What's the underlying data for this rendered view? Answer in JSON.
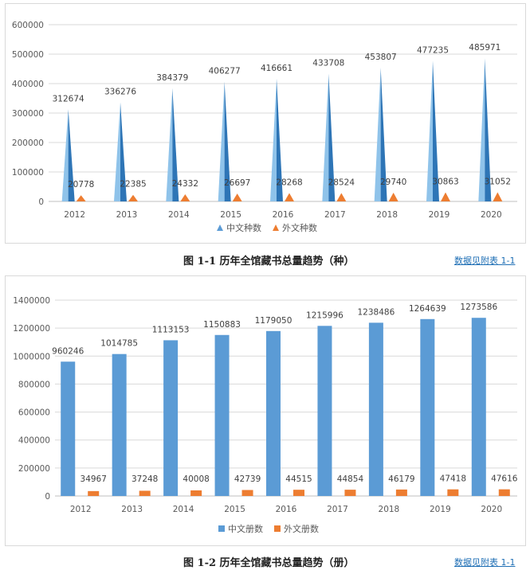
{
  "charts": [
    {
      "caption": "图 1-1  历年全馆藏书总量趋势（种）",
      "link": "数据见附表 1-1"
    },
    {
      "caption": "图 1-2  历年全馆藏书总量趋势（册）",
      "link": "数据见附表 1-1"
    }
  ],
  "colors": {
    "blue": "#5b9bd5",
    "blue_light": "#8fc3ea",
    "blue_dark": "#2e75b6",
    "orange": "#ed7d31",
    "grid": "#d9d9d9",
    "axis_text": "#595959"
  },
  "chart_data": [
    {
      "type": "bar",
      "mark": "triangle",
      "categories": [
        "2012",
        "2013",
        "2014",
        "2015",
        "2016",
        "2017",
        "2018",
        "2019",
        "2020"
      ],
      "ylim": [
        0,
        600000
      ],
      "yticks": [
        "0",
        "100000",
        "200000",
        "300000",
        "400000",
        "500000",
        "600000"
      ],
      "grid": true,
      "legend_position": "bottom",
      "series": [
        {
          "name": "中文种数",
          "color": "#5b9bd5",
          "values": [
            312674,
            336276,
            384379,
            406277,
            416661,
            433708,
            453807,
            477235,
            485971
          ],
          "labels": [
            "312674",
            "336276",
            "384379",
            "406277",
            "416661",
            "433708",
            "453807",
            "477235",
            "485971"
          ]
        },
        {
          "name": "外文种数",
          "color": "#ed7d31",
          "values": [
            20778,
            22385,
            24332,
            26697,
            28268,
            28524,
            29740,
            30863,
            31052
          ],
          "labels": [
            "20778",
            "22385",
            "24332",
            "26697",
            "28268",
            "28524",
            "29740",
            "30863",
            "31052"
          ]
        }
      ]
    },
    {
      "type": "bar",
      "mark": "column",
      "categories": [
        "2012",
        "2013",
        "2014",
        "2015",
        "2016",
        "2017",
        "2018",
        "2019",
        "2020"
      ],
      "ylim": [
        0,
        1400000
      ],
      "yticks": [
        "0",
        "200000",
        "400000",
        "600000",
        "800000",
        "1000000",
        "1200000",
        "1400000"
      ],
      "grid": true,
      "legend_position": "bottom",
      "series": [
        {
          "name": "中文册数",
          "color": "#5b9bd5",
          "values": [
            960246,
            1014785,
            1113153,
            1150883,
            1179050,
            1215996,
            1238486,
            1264639,
            1273586
          ],
          "labels": [
            "960246",
            "1014785",
            "1113153",
            "1150883",
            "1179050",
            "1215996",
            "1238486",
            "1264639",
            "1273586"
          ]
        },
        {
          "name": "外文册数",
          "color": "#ed7d31",
          "values": [
            34967,
            37248,
            40008,
            42739,
            44515,
            44854,
            46179,
            47418,
            47616
          ],
          "labels": [
            "34967",
            "37248",
            "40008",
            "42739",
            "44515",
            "44854",
            "46179",
            "47418",
            "47616"
          ]
        }
      ]
    }
  ]
}
